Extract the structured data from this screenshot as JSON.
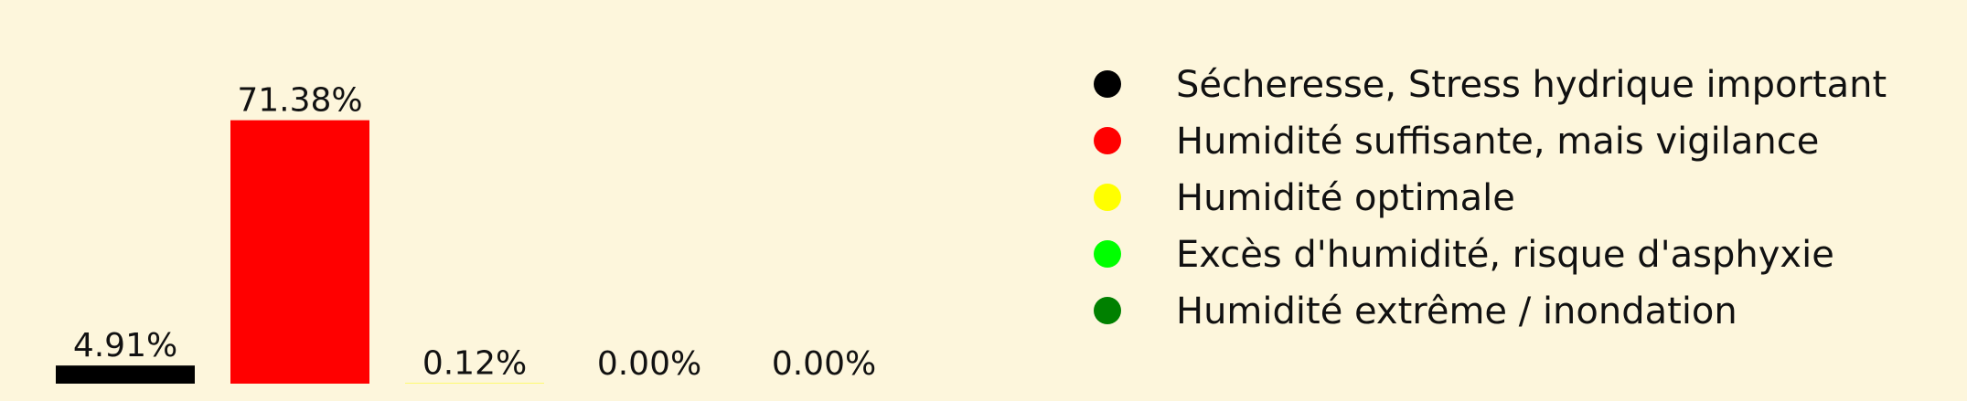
{
  "chart_data": {
    "type": "bar",
    "categories": [
      "Sécheresse, Stress hydrique important",
      "Humidité suffisante, mais vigilance",
      "Humidité optimale",
      "Excès d'humidité, risque d'asphyxie",
      "Humidité extrême / inondation"
    ],
    "values": [
      4.91,
      71.38,
      0.12,
      0.0,
      0.0
    ],
    "value_labels": [
      "4.91%",
      "71.38%",
      "0.12%",
      "0.00%",
      "0.00%"
    ],
    "colors": [
      "#000000",
      "#ff0000",
      "#ffff00",
      "#00ff00",
      "#008000"
    ],
    "legend_placement": "right",
    "grid": false,
    "ylim": [
      0,
      100
    ]
  },
  "legend": {
    "items": [
      {
        "label": "Sécheresse, Stress hydrique important",
        "color": "#000000"
      },
      {
        "label": "Humidité suffisante, mais vigilance",
        "color": "#ff0000"
      },
      {
        "label": "Humidité optimale",
        "color": "#ffff00"
      },
      {
        "label": "Excès d'humidité, risque d'asphyxie",
        "color": "#00ff00"
      },
      {
        "label": "Humidité extrême / inondation",
        "color": "#008000"
      }
    ]
  },
  "colors": {
    "background": "#fdf6dc",
    "text": "#111111"
  }
}
